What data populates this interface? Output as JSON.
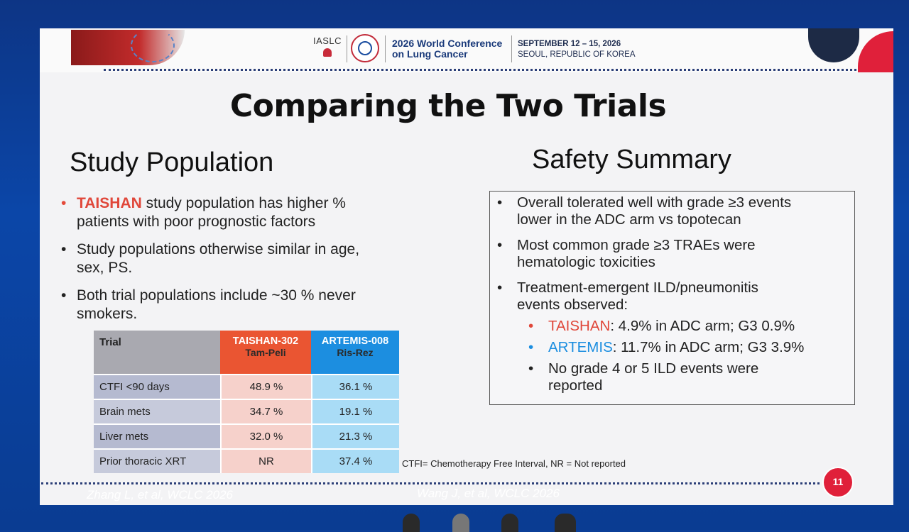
{
  "header": {
    "org_logo": "IASLC",
    "conference_title_line1": "2026 World Conference",
    "conference_title_line2": "on Lung Cancer",
    "dates": "SEPTEMBER 12 – 15, 2026",
    "location": "SEOUL, REPUBLIC OF KOREA"
  },
  "slide": {
    "title": "Comparing the Two Trials",
    "left_heading": "Study Population",
    "right_heading": "Safety Summary",
    "population_bullets": [
      {
        "highlight": "TAISHAN",
        "text": " study population has higher %\npatients with poor prognostic factors"
      },
      {
        "text": "Study populations otherwise similar in age,\nsex, PS."
      },
      {
        "text": "Both trial populations include ~30 % never\nsmokers."
      }
    ],
    "table": {
      "header_trial": "Trial",
      "col1_name": "TAISHAN-302",
      "col1_sub": "Tam-Peli",
      "col2_name": "ARTEMIS-008",
      "col2_sub": "Ris-Rez",
      "rows": [
        {
          "label": "CTFI <90 days",
          "taishan": "48.9 %",
          "artemis": "36.1 %"
        },
        {
          "label": "Brain mets",
          "taishan": "34.7 %",
          "artemis": "19.1 %"
        },
        {
          "label": "Liver mets",
          "taishan": "32.0 %",
          "artemis": "21.3 %"
        },
        {
          "label": "Prior thoracic XRT",
          "taishan": "NR",
          "artemis": "37.4 %"
        }
      ]
    },
    "footnote": "CTFI= Chemotherapy Free Interval, NR = Not reported",
    "safety": {
      "b1": "Overall tolerated well with grade ≥3 events\nlower in the ADC arm vs topotecan",
      "b2": "Most common grade ≥3 TRAEs were\nhematologic toxicities",
      "b3": "Treatment-emergent ILD/pneumonitis\nevents observed:",
      "sub1_name": "TAISHAN",
      "sub1_text": ": 4.9% in ADC arm; G3 0.9%",
      "sub2_name": "ARTEMIS",
      "sub2_text": ": 11.7% in ADC arm; G3 3.9%",
      "sub3": "No grade 4 or 5 ILD events were\nreported"
    },
    "page_number": "11"
  },
  "citations": {
    "left": "Zhang L, et al, WCLC 2026",
    "right": "Wang J, et al, WCLC 2026"
  },
  "colors": {
    "taishan": "#e0473a",
    "artemis": "#1c8ee0",
    "background": "#0b3f98"
  }
}
